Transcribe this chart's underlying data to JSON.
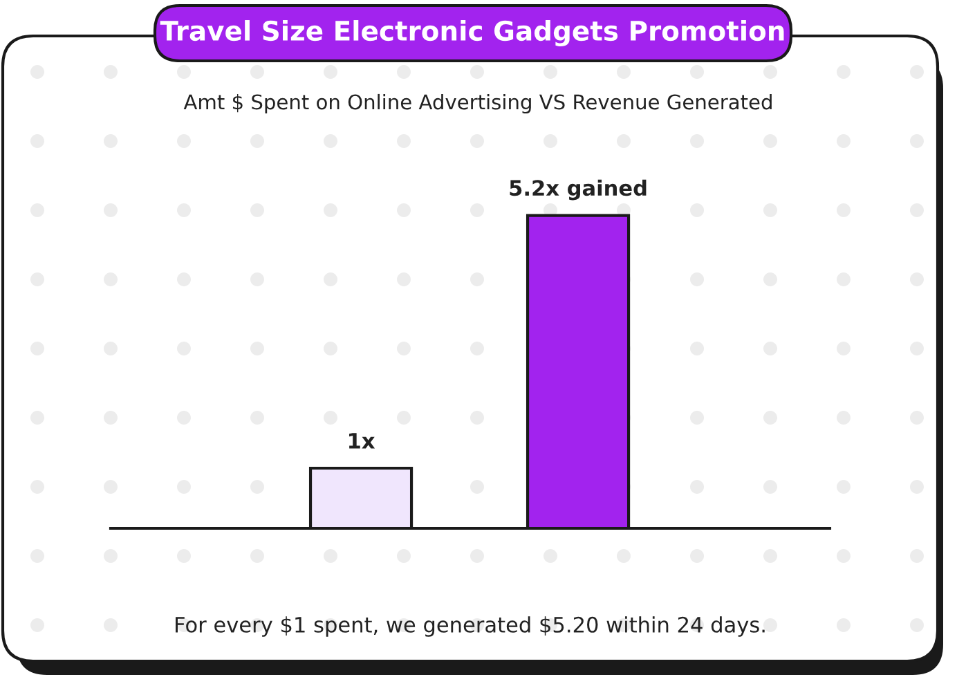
{
  "chart_data": {
    "type": "bar",
    "title": "Travel Size Electronic Gadgets Promotion",
    "subtitle": "Amt $ Spent on Online Advertising VS Revenue Generated",
    "categories": [
      null,
      null
    ],
    "values": [
      1,
      5.2
    ],
    "colors": [
      "#f0e6fd",
      "#a223ee"
    ],
    "value_labels": [
      "1x",
      "5.2x gained"
    ],
    "grid": false,
    "legend": false,
    "annotations": [
      "For every $1 spent, we generated $5.20 within 24 days."
    ]
  }
}
